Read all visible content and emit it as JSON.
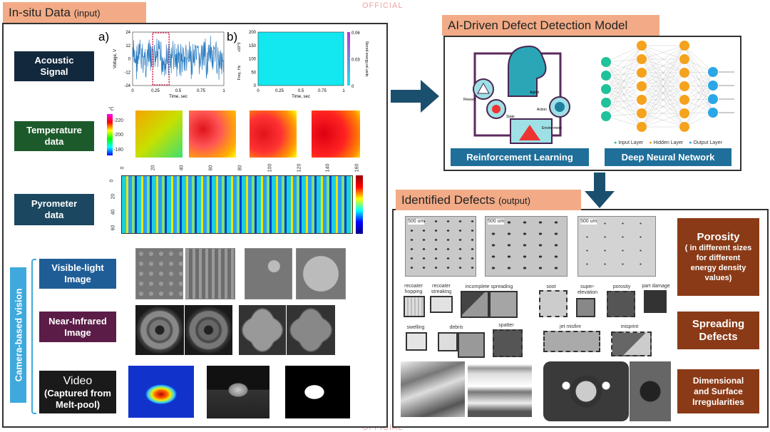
{
  "watermark": "OFFICIAL",
  "left": {
    "title": "In-situ Data",
    "title_suffix": "(input)",
    "labels": {
      "acoustic": "Acoustic\nSignal",
      "temperature": "Temperature\ndata",
      "pyrometer": "Pyrometer\ndata",
      "visible": "Visible-light\nImage",
      "nir": "Near-Infrared\nImage",
      "video": "Video",
      "video_sub": "(Captured from\nMelt-pool)",
      "camera": "Camera-based vision"
    },
    "chart_a": {
      "panel": "a)",
      "ylabel": "Voltage, V",
      "xlabel": "Time, sec",
      "yticks": [
        "24",
        "12",
        "0",
        "-12",
        "-24"
      ],
      "xticks": [
        "0",
        "0.25",
        "0.5",
        "0.75",
        "1"
      ]
    },
    "chart_b": {
      "panel": "b)",
      "ylabel": "Freq., Hz",
      "yscale": "x10^3",
      "xlabel": "Time, sec",
      "yticks": [
        "200",
        "150",
        "100",
        "50",
        "0"
      ],
      "xticks": [
        "0",
        "0.25",
        "0.5",
        "0.75",
        "1"
      ],
      "cbar_label": "Stored energy,rel.units",
      "cbar_ticks": [
        "0.06",
        "0.03",
        "0"
      ]
    },
    "temp_cbar": {
      "unit": "°C",
      "ticks": [
        "-220",
        "-200",
        "-180"
      ]
    },
    "pyro": {
      "xticks": [
        "0",
        "20",
        "40",
        "60",
        "80",
        "100",
        "120",
        "140",
        "160"
      ],
      "yticks": [
        "0",
        "20",
        "40",
        "60"
      ]
    }
  },
  "model": {
    "title": "AI-Driven Defect Detection Model",
    "rl_label": "Reinforcement Learning",
    "dnn_label": "Deep Neural Network",
    "rl_tags": [
      "Reward",
      "Agent",
      "State",
      "Action",
      "Environment"
    ],
    "legend": [
      "Input Layer",
      "Hidden Layer",
      "Output Layer"
    ],
    "colors": {
      "input": "#20c29a",
      "hidden": "#f5a21c",
      "output": "#2aa7e6"
    }
  },
  "defects": {
    "title": "Identified Defects",
    "title_suffix": "(output)",
    "micro_tags": [
      "500 um",
      "500 um",
      "500 um"
    ],
    "row1": [
      "recoater\nhopping",
      "recoater\nstreaking",
      "incomplete spreading",
      "soot",
      "super-\nelevation",
      "porosity",
      "part damage"
    ],
    "row2": [
      "swelling",
      "debris",
      "spatter",
      "jet misfire",
      "misprint"
    ],
    "categories": {
      "porosity": "Porosity",
      "porosity_sub": "( in different sizes for different energy density values)",
      "spreading": "Spreading\nDefects",
      "dimensional": "Dimensional\nand Surface\nIrregularities"
    }
  }
}
